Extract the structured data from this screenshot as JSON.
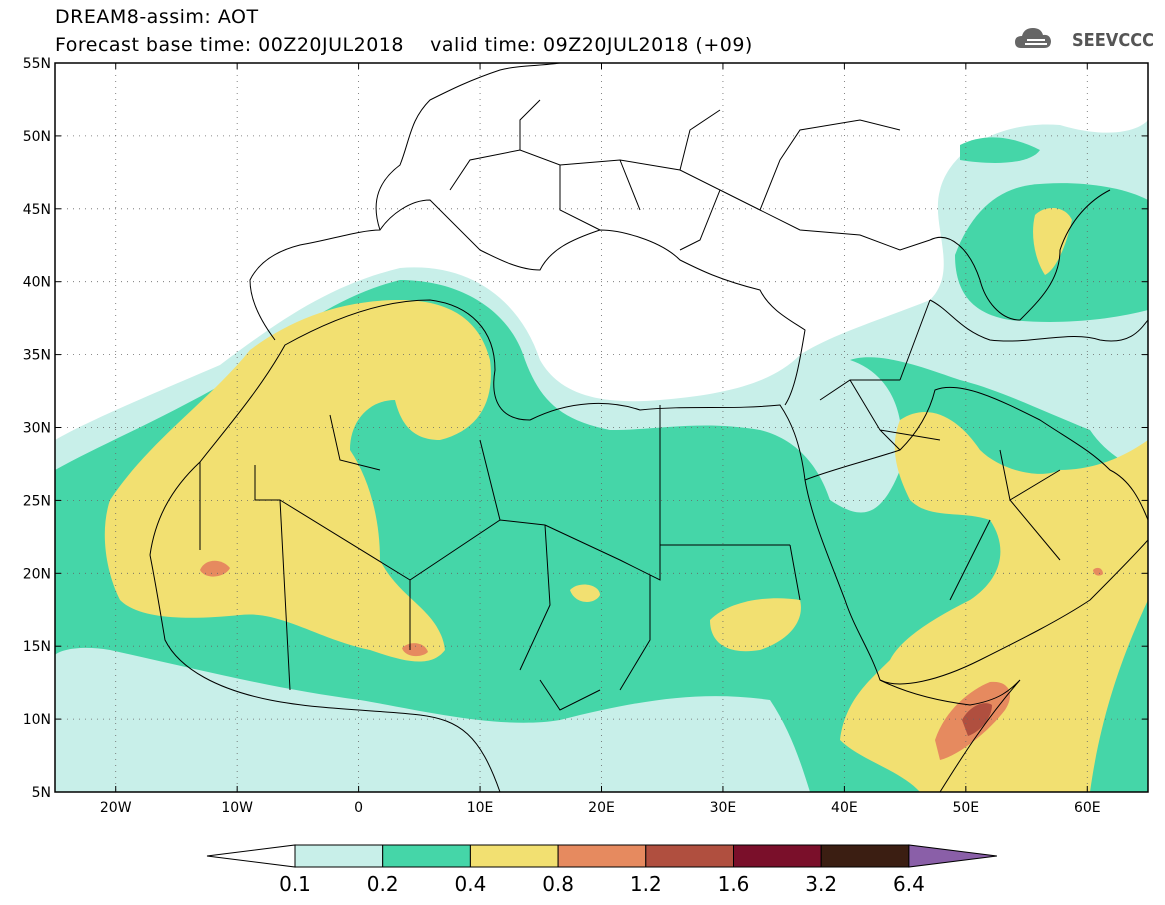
{
  "header": {
    "title": "DREAM8-assim: AOT",
    "base_label": "Forecast base time: 00Z20JUL2018",
    "valid_label": "valid time: 09Z20JUL2018 (+09)",
    "logo_text": "SEEVCCC"
  },
  "map": {
    "lat_labels": [
      "55N",
      "50N",
      "45N",
      "40N",
      "35N",
      "30N",
      "25N",
      "20N",
      "15N",
      "10N",
      "5N"
    ],
    "lon_labels": [
      "20W",
      "10W",
      "0",
      "10E",
      "20E",
      "30E",
      "40E",
      "50E",
      "60E"
    ],
    "lat_range": [
      5,
      55
    ],
    "lon_range": [
      -25,
      65
    ],
    "grid": "dotted"
  },
  "colorbar": {
    "levels": [
      "0.1",
      "0.2",
      "0.4",
      "0.8",
      "1.2",
      "1.6",
      "3.2",
      "6.4"
    ],
    "colors": [
      "#ffffff",
      "#c8efe9",
      "#45d6a8",
      "#f2e071",
      "#e68a5f",
      "#b04f3f",
      "#7a0f2a",
      "#3b1e12",
      "#8a5fa8"
    ]
  },
  "colors": {
    "c01": "#c8efe9",
    "c02": "#45d6a8",
    "c04": "#f2e071",
    "c08": "#e68a5f",
    "c12": "#b04f3f"
  }
}
